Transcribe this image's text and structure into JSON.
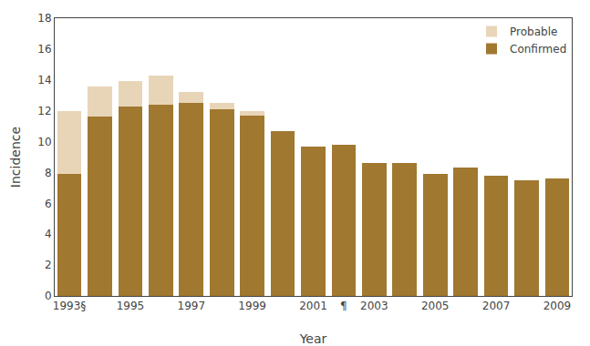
{
  "chart_data": {
    "type": "bar",
    "stacked": true,
    "x": [
      1993,
      1994,
      1995,
      1996,
      1997,
      1998,
      1999,
      2000,
      2001,
      2002,
      2003,
      2004,
      2005,
      2006,
      2007,
      2008,
      2009
    ],
    "series": [
      {
        "name": "Confirmed",
        "color": "#A07830",
        "values": [
          7.9,
          11.6,
          12.3,
          12.4,
          12.5,
          12.1,
          11.7,
          10.7,
          9.7,
          9.8,
          8.6,
          8.6,
          7.9,
          8.3,
          7.8,
          7.5,
          7.6
        ]
      },
      {
        "name": "Probable",
        "color": "#E8D5B8",
        "values": [
          4.1,
          2.0,
          1.6,
          1.9,
          0.7,
          0.4,
          0.3,
          0.0,
          0.0,
          0.0,
          0.0,
          0.0,
          0.0,
          0.0,
          0.0,
          0.0,
          0.0
        ]
      }
    ],
    "xlabel": "Year",
    "ylabel": "Incidence",
    "xlim": [
      1992.52,
      2009.48
    ],
    "xticks": [
      {
        "value": 1993,
        "label": "1993§"
      },
      1995,
      1997,
      1999,
      2001,
      {
        "value": 2002,
        "label": "¶"
      },
      2003,
      2005,
      2007,
      2009
    ],
    "ylim": [
      0,
      18
    ],
    "yticks": [
      0,
      2,
      4,
      6,
      8,
      10,
      12,
      14,
      16,
      18
    ],
    "grid": false,
    "legend": "upper right"
  }
}
